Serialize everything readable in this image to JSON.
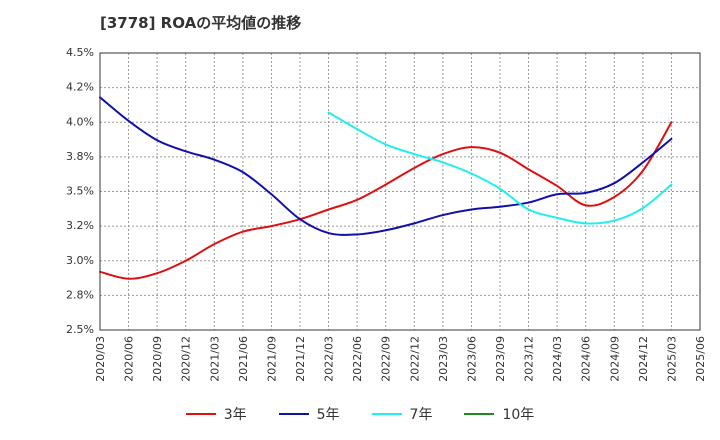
{
  "title": "[3778]  ROAの平均値の推移",
  "colors": {
    "y3": "#dd1111",
    "y5": "#1111aa",
    "y7": "#22eeee",
    "y10": "#228822",
    "grid": "#999999",
    "axis": "#333333"
  },
  "chart_data": {
    "type": "line",
    "title": "[3778]  ROAの平均値の推移",
    "xlabel": "",
    "ylabel": "",
    "ylim": [
      2.5,
      4.5
    ],
    "y_ticks": [
      "2.5%",
      "2.8%",
      "3.0%",
      "3.2%",
      "3.5%",
      "3.8%",
      "4.0%",
      "4.2%",
      "4.5%"
    ],
    "y_tick_values": [
      2.5,
      2.75,
      3.0,
      3.25,
      3.5,
      3.75,
      4.0,
      4.25,
      4.5
    ],
    "x_ticks": [
      "2020/03",
      "2020/06",
      "2020/09",
      "2020/12",
      "2021/03",
      "2021/06",
      "2021/09",
      "2021/12",
      "2022/03",
      "2022/06",
      "2022/09",
      "2022/12",
      "2023/03",
      "2023/06",
      "2023/09",
      "2023/12",
      "2024/03",
      "2024/06",
      "2024/09",
      "2024/12",
      "2025/03",
      "2025/06"
    ],
    "grid": true,
    "legend_position": "bottom",
    "series": [
      {
        "name": "3年",
        "color": "#dd1111",
        "x": [
          "2020/03",
          "2020/06",
          "2020/09",
          "2020/12",
          "2021/03",
          "2021/06",
          "2021/09",
          "2021/12",
          "2022/03",
          "2022/06",
          "2022/09",
          "2022/12",
          "2023/03",
          "2023/06",
          "2023/09",
          "2023/12",
          "2024/03",
          "2024/06",
          "2024/09",
          "2024/12",
          "2025/03"
        ],
        "values": [
          2.92,
          2.87,
          2.91,
          3.0,
          3.12,
          3.21,
          3.25,
          3.3,
          3.37,
          3.44,
          3.55,
          3.67,
          3.77,
          3.82,
          3.78,
          3.66,
          3.54,
          3.4,
          3.46,
          3.65,
          4.0
        ]
      },
      {
        "name": "5年",
        "color": "#1111aa",
        "x": [
          "2020/03",
          "2020/06",
          "2020/09",
          "2020/12",
          "2021/03",
          "2021/06",
          "2021/09",
          "2021/12",
          "2022/03",
          "2022/06",
          "2022/09",
          "2022/12",
          "2023/03",
          "2023/06",
          "2023/09",
          "2023/12",
          "2024/03",
          "2024/06",
          "2024/09",
          "2024/12",
          "2025/03"
        ],
        "values": [
          4.18,
          4.01,
          3.87,
          3.79,
          3.73,
          3.64,
          3.48,
          3.3,
          3.2,
          3.19,
          3.22,
          3.27,
          3.33,
          3.37,
          3.39,
          3.42,
          3.48,
          3.49,
          3.56,
          3.71,
          3.88
        ]
      },
      {
        "name": "7年",
        "color": "#22eeee",
        "x": [
          "2022/03",
          "2022/06",
          "2022/09",
          "2022/12",
          "2023/03",
          "2023/06",
          "2023/09",
          "2023/12",
          "2024/03",
          "2024/06",
          "2024/09",
          "2024/12",
          "2025/03"
        ],
        "values": [
          4.07,
          3.95,
          3.84,
          3.77,
          3.71,
          3.63,
          3.52,
          3.37,
          3.31,
          3.27,
          3.29,
          3.38,
          3.55
        ]
      },
      {
        "name": "10年",
        "color": "#228822",
        "x": [],
        "values": []
      }
    ]
  }
}
